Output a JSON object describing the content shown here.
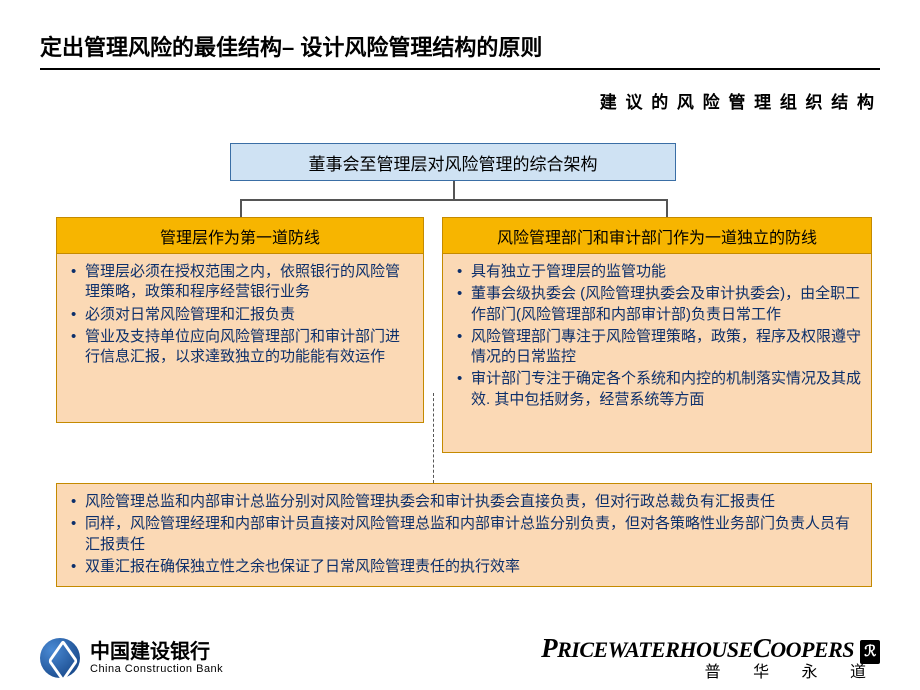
{
  "title": "定出管理风险的最佳结构– 设计风险管理结构的原则",
  "subtitle": "建 议 的 风 险 管 理 组 织 结 构",
  "colors": {
    "top_fill": "#cfe2f3",
    "top_border": "#3a6ea5",
    "header_fill": "#f7b500",
    "body_fill": "#fbd9b5",
    "body_border": "#c48a00",
    "text_body": "#0c2f6b",
    "line": "#555555"
  },
  "topBox": "董事会至管理层对风险管理的综合架构",
  "left": {
    "header": "管理层作为第一道防线",
    "bullets": [
      "管理层必须在授权范围之内，依照银行的风险管理策略，政策和程序经营银行业务",
      "必须对日常风险管理和汇报负责",
      "管业及支持单位应向风险管理部门和审计部门进行信息汇报，以求達致独立的功能能有效运作"
    ]
  },
  "right": {
    "header": "风险管理部门和审计部门作为一道独立的防线",
    "bullets": [
      "具有独立于管理层的监管功能",
      "董事会级执委会 (风险管理执委会及审计执委会)，由全职工作部门(风险管理部和内部审计部)负责日常工作",
      "风险管理部门專注于风险管理策略，政策，程序及权限遵守情况的日常监控",
      "审计部门专注于确定各个系统和内控的机制落实情况及其成效. 其中包括财务，经营系统等方面"
    ]
  },
  "bottom": {
    "bullets": [
      "风险管理总监和内部审计总监分别对风险管理执委会和审计执委会直接负责，但对行政总裁负有汇报责任",
      "同样，风险管理经理和内部审计员直接对风险管理总监和内部审计总监分别负责，但对各策略性业务部门负责人员有汇报责任",
      "双重汇报在确保独立性之余也保证了日常风险管理责任的执行效率"
    ]
  },
  "footer": {
    "ccb_cn": "中国建设银行",
    "ccb_en": "China Construction Bank",
    "pwc_cn": "普 华 永 道"
  }
}
